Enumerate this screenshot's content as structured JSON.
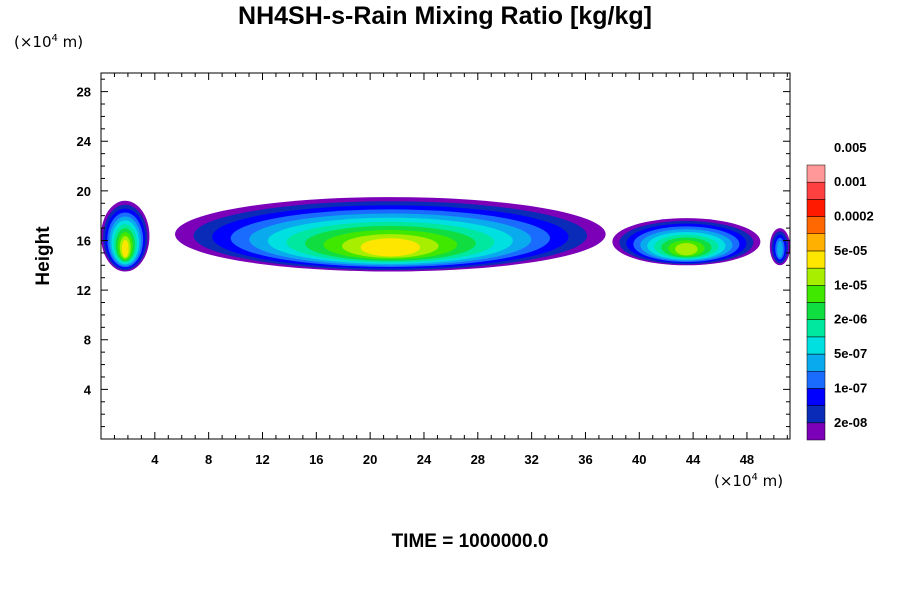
{
  "title": "NH4SH-s-Rain Mixing Ratio [kg/kg]",
  "y_unit": {
    "prefix": "(×10",
    "exp": "4",
    "suffix": " m)"
  },
  "x_unit": {
    "prefix": "(×10",
    "exp": "4",
    "suffix": " m)"
  },
  "footer": "TIME = 1000000.0",
  "chart_data": {
    "type": "heatmap",
    "title": "NH4SH-s-Rain Mixing Ratio [kg/kg]",
    "xlabel": "",
    "ylabel": "Height",
    "xlim": [
      0,
      51.2
    ],
    "ylim": [
      0,
      29.5
    ],
    "x_ticks": [
      "4",
      "8",
      "12",
      "16",
      "20",
      "24",
      "28",
      "32",
      "36",
      "40",
      "44",
      "48"
    ],
    "y_ticks": [
      "4",
      "8",
      "12",
      "16",
      "20",
      "24",
      "28"
    ],
    "colorbar": {
      "levels": [
        "2e-08",
        "1e-07",
        "5e-07",
        "2e-06",
        "1e-05",
        "5e-05",
        "0.0002",
        "0.001",
        "0.005"
      ],
      "colors": [
        "#7b00b8",
        "#0a2ab8",
        "#0000ff",
        "#1a6cff",
        "#0aaaee",
        "#00e0e0",
        "#00e8a0",
        "#10dd40",
        "#40e800",
        "#a8ee00",
        "#ffe600",
        "#ffb000",
        "#ff6800",
        "#ff1a00",
        "#ff4040",
        "#ff9898"
      ]
    },
    "cloud_bands": [
      {
        "x_start": 0,
        "x_end": 3.6,
        "y_min": 13.5,
        "y_max": 19.2,
        "peak_level": 10
      },
      {
        "x_start": 5.5,
        "x_end": 37.5,
        "y_min": 13.5,
        "y_max": 19.5,
        "peak_level": 10
      },
      {
        "x_start": 38.0,
        "x_end": 49.0,
        "y_min": 14.0,
        "y_max": 17.8,
        "peak_level": 9
      },
      {
        "x_start": 49.7,
        "x_end": 51.2,
        "y_min": 14.0,
        "y_max": 17.0,
        "peak_level": 4
      }
    ]
  }
}
